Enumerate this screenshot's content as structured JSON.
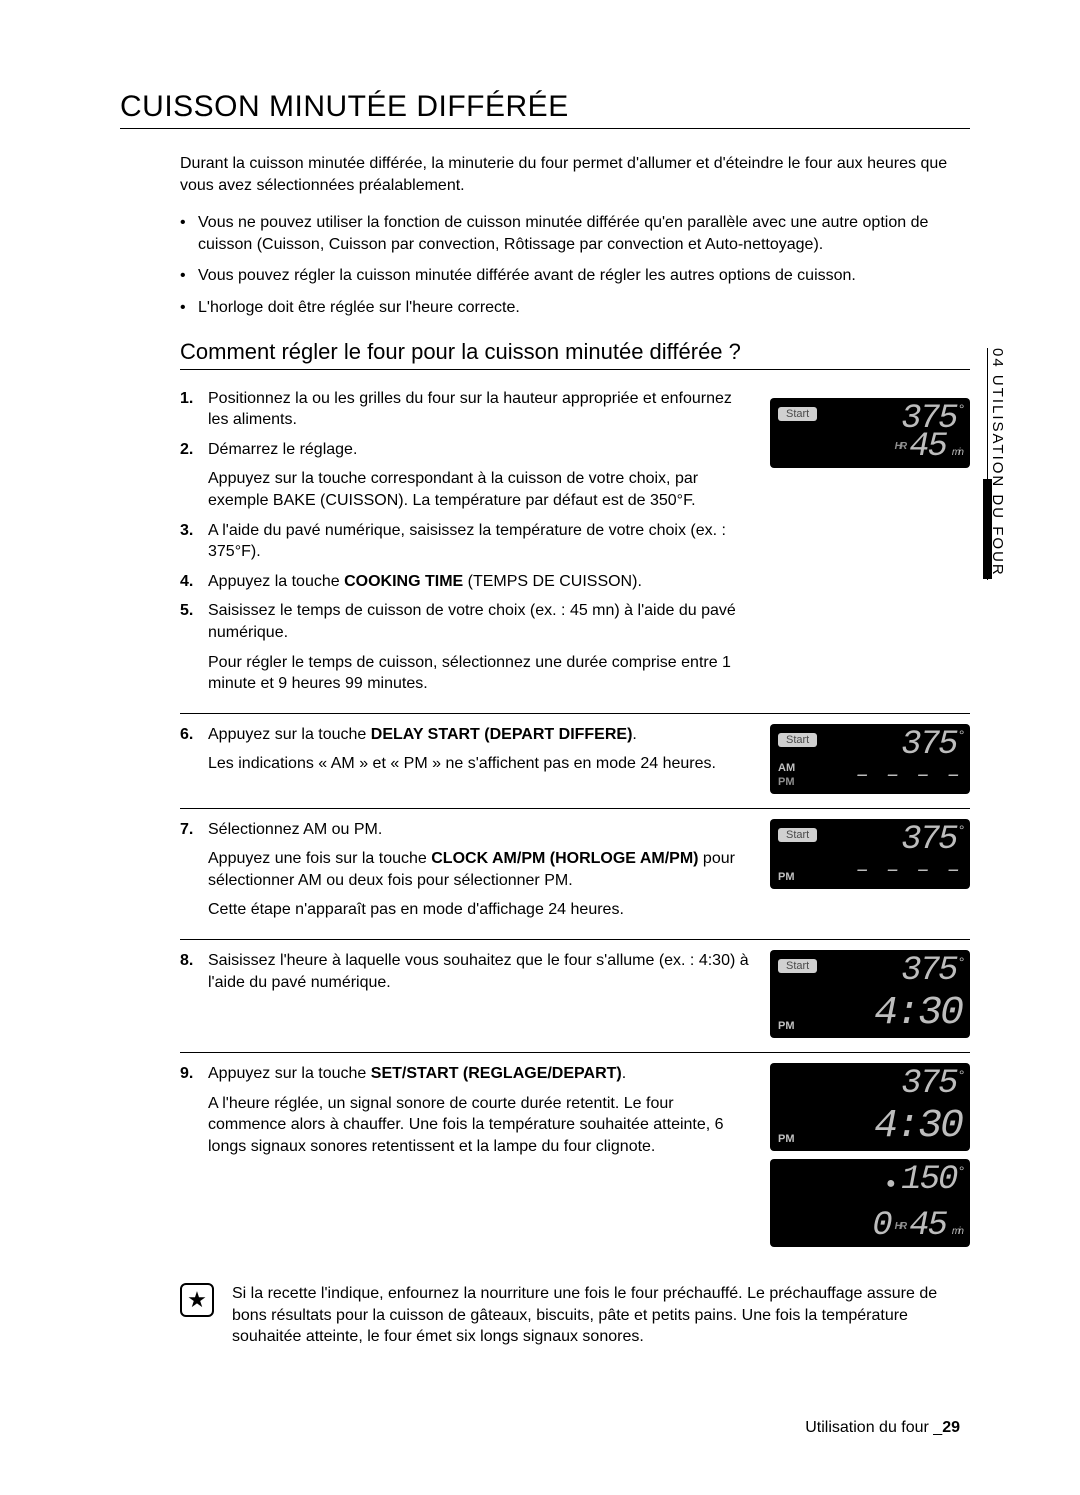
{
  "title": "CUISSON MINUTÉE DIFFÉRÉE",
  "intro": "Durant la cuisson minutée différée, la minuterie du four permet d'allumer et d'éteindre le four aux heures que vous avez sélectionnées préalablement.",
  "bullets": [
    "Vous ne pouvez utiliser la fonction de cuisson minutée différée qu'en parallèle avec une autre option de cuisson (Cuisson, Cuisson par convection, Rôtissage par convection et Auto-nettoyage).",
    "Vous pouvez régler la cuisson minutée différée avant de régler les autres options de cuisson.",
    "L'horloge doit être réglée sur l'heure correcte."
  ],
  "subheading": "Comment régler le four pour la cuisson minutée différée ?",
  "side_tab": "04  UTILISATION DU FOUR",
  "steps": {
    "s1": {
      "num": "1.",
      "text": "Positionnez la ou les grilles du four sur la hauteur appropriée et enfournez les aliments."
    },
    "s2": {
      "num": "2.",
      "text": "Démarrez le réglage.",
      "text2": "Appuyez sur la touche correspondant à la cuisson de votre choix, par exemple BAKE (CUISSON). La température par défaut est de 350°F."
    },
    "s3": {
      "num": "3.",
      "text": "A l'aide du pavé numérique, saisissez la température de votre choix (ex. : 375°F)."
    },
    "s4": {
      "num": "4.",
      "text_pre": "Appuyez la touche ",
      "bold": "COOKING TIME",
      "text_post": " (TEMPS DE CUISSON)."
    },
    "s5": {
      "num": "5.",
      "text": "Saisissez le temps de cuisson de votre choix (ex. : 45 mn) à l'aide du pavé numérique.",
      "text2": "Pour régler le temps de cuisson, sélectionnez une durée comprise entre 1 minute et 9 heures 99 minutes."
    },
    "s6": {
      "num": "6.",
      "text_pre": "Appuyez sur la touche ",
      "bold": "DELAY START (DEPART DIFFERE)",
      "text_post": ".",
      "text2": "Les indications « AM » et « PM » ne s'affichent pas en mode 24 heures."
    },
    "s7": {
      "num": "7.",
      "text": "Sélectionnez AM ou PM.",
      "text2_pre": "Appuyez une fois sur la touche ",
      "text2_bold": "CLOCK AM/PM (HORLOGE AM/PM)",
      "text2_post": " pour sélectionner AM ou deux fois pour sélectionner PM.",
      "text3": "Cette étape n'apparaît pas en mode d'affichage 24 heures."
    },
    "s8": {
      "num": "8.",
      "text": "Saisissez l'heure à laquelle vous souhaitez que le four s'allume (ex. : 4:30) à l'aide du pavé numérique."
    },
    "s9": {
      "num": "9.",
      "text_pre": "Appuyez sur la touche ",
      "bold": "SET/START (REGLAGE/DEPART)",
      "text_post": ".",
      "text2": "A l'heure réglée, un signal sonore de courte durée retentit. Le four commence alors à chauffer. Une fois la température souhaitée atteinte, 6 longs signaux sonores retentissent et la lampe du four clignote."
    }
  },
  "displays": {
    "start_label": "Start",
    "temp375": "375",
    "temp150": "150",
    "time45": "45",
    "time430": "4:30",
    "zero": "0",
    "hr": "HR",
    "min": "min",
    "am": "AM",
    "pm": "PM",
    "dashes": "– –  – –"
  },
  "tip": "Si la recette l'indique, enfournez la nourriture une fois le four préchauffé. Le préchauffage assure de bons résultats pour la cuisson de gâteaux, biscuits, pâte et petits pains. Une fois la température souhaitée atteinte, le four émet six longs signaux sonores.",
  "footer_text": "Utilisation du four _",
  "footer_page": "29",
  "colors": {
    "lcd_bg": "#000000",
    "lcd_text": "#bdbdbd",
    "badge_bg": "#d0d0d0"
  }
}
